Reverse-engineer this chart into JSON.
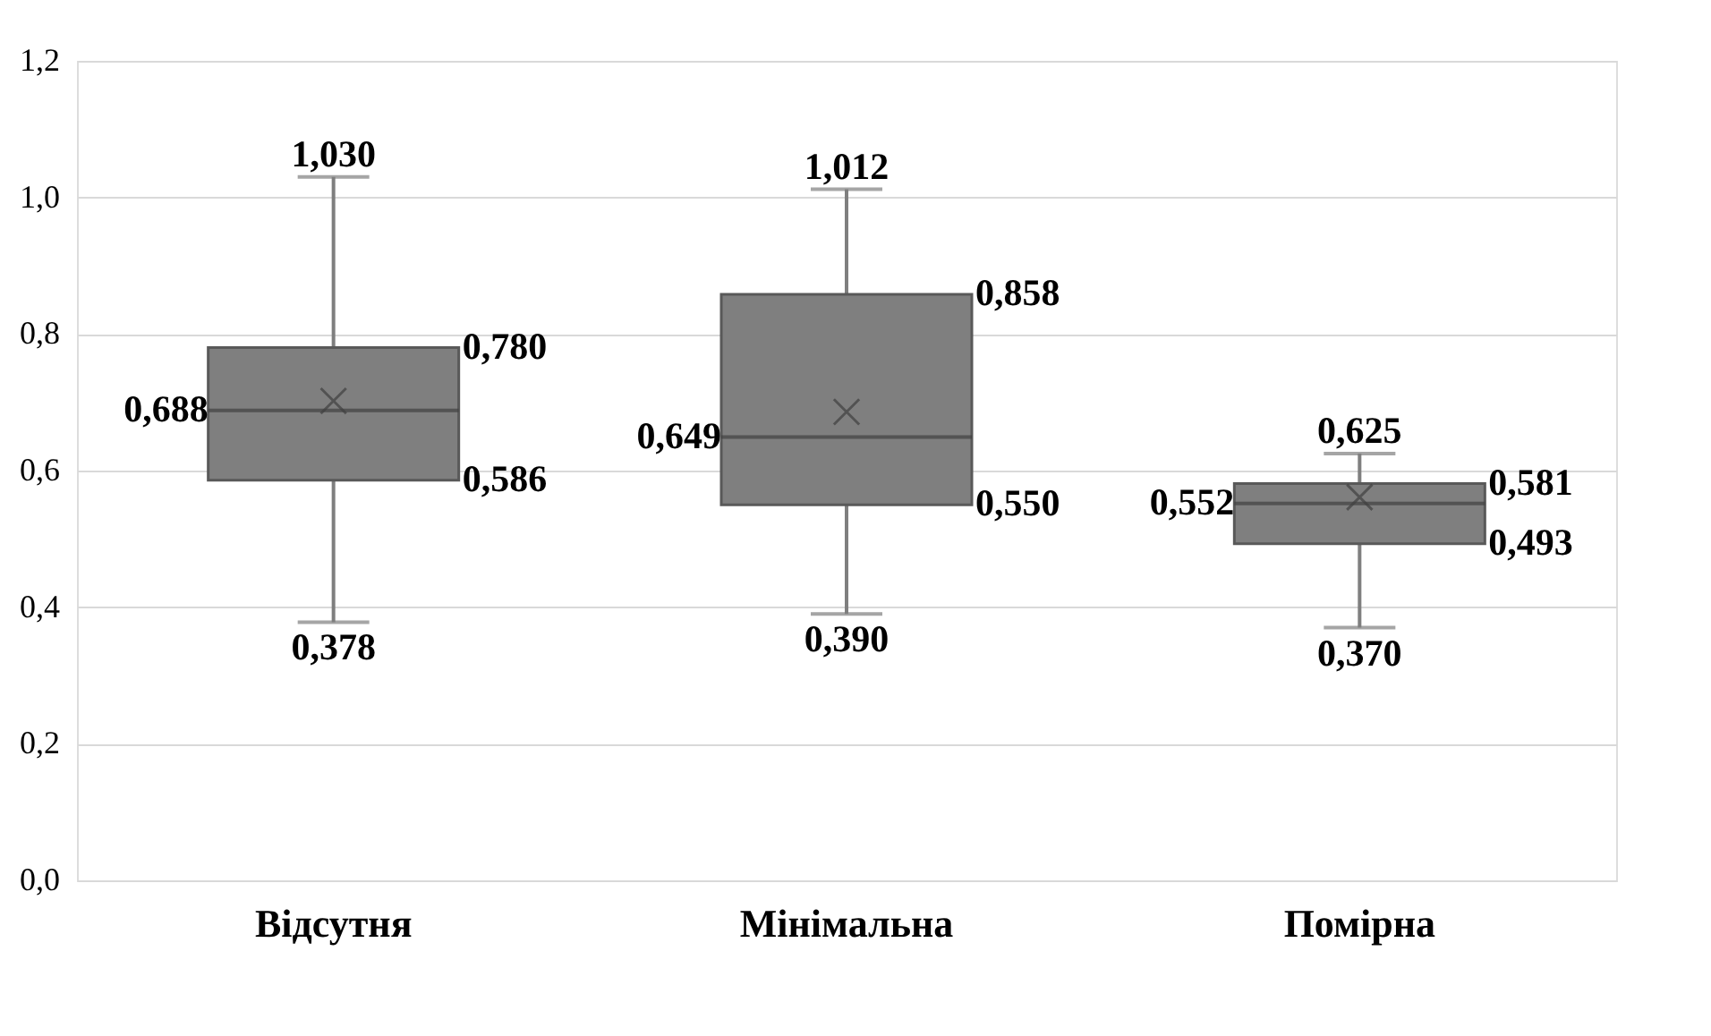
{
  "chart_data": {
    "type": "box",
    "categories": [
      "Відсутня",
      "Мінімальна",
      "Помірна"
    ],
    "series": [
      {
        "color": "#7f7f7f",
        "boxes": [
          {
            "low": 0.378,
            "q1": 0.586,
            "median": 0.688,
            "q3": 0.78,
            "high": 1.03,
            "mean": 0.702
          },
          {
            "low": 0.39,
            "q1": 0.55,
            "median": 0.649,
            "q3": 0.858,
            "high": 1.012,
            "mean": 0.686
          },
          {
            "low": 0.37,
            "q1": 0.493,
            "median": 0.552,
            "q3": 0.581,
            "high": 0.625,
            "mean": 0.561
          }
        ]
      }
    ],
    "ylim": [
      0,
      1.2
    ],
    "yticks": [
      {
        "value": 0,
        "label": "0,0"
      },
      {
        "value": 0.2,
        "label": "0,2"
      },
      {
        "value": 0.4,
        "label": "0,4"
      },
      {
        "value": 0.6,
        "label": "0,6"
      },
      {
        "value": 0.8,
        "label": "0,8"
      },
      {
        "value": 1.0,
        "label": "1,0"
      },
      {
        "value": 1.2,
        "label": "1,2"
      }
    ],
    "grid": "y",
    "marker": "cross",
    "annotations": [
      "1,030",
      "0,780",
      "0,688",
      "0,586",
      "0,378",
      "1,012",
      "0,858",
      "0,649",
      "0,550",
      "0,390",
      "0,625",
      "0,581",
      "0,552",
      "0,493",
      "0,370"
    ]
  }
}
